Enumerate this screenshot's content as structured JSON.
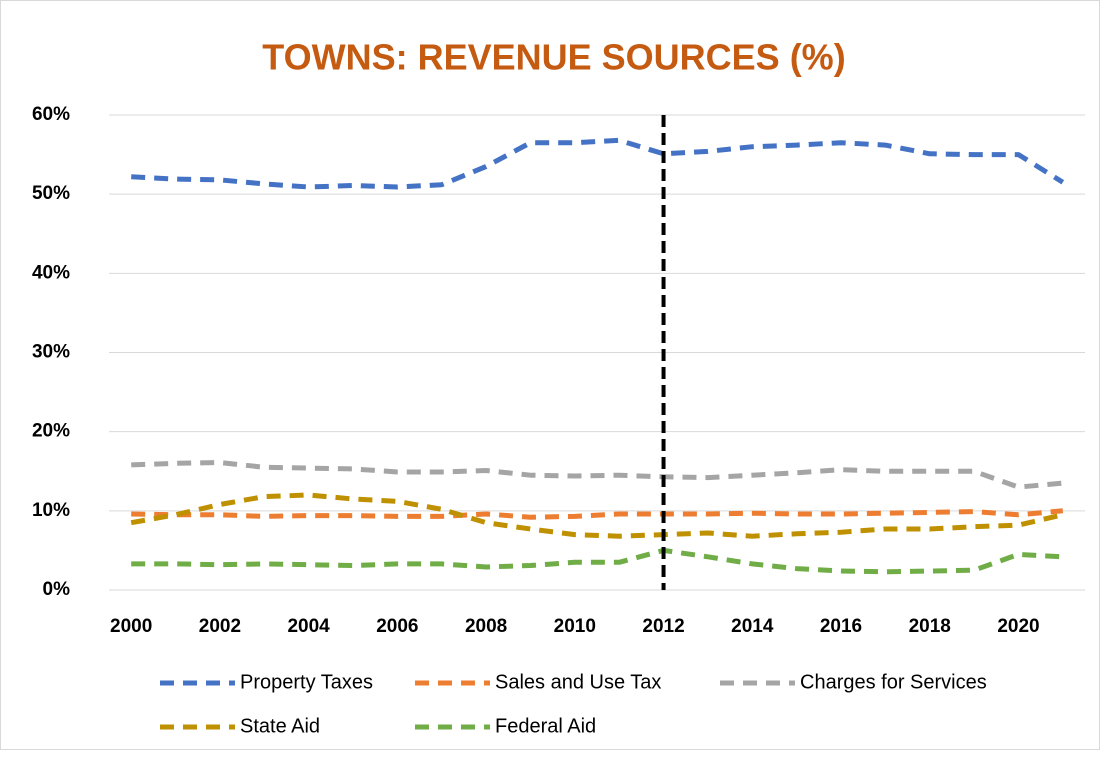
{
  "chart_data": {
    "type": "line",
    "title": "TOWNS: REVENUE SOURCES (%)",
    "x": [
      2000,
      2001,
      2002,
      2003,
      2004,
      2005,
      2006,
      2007,
      2008,
      2009,
      2010,
      2011,
      2012,
      2013,
      2014,
      2015,
      2016,
      2017,
      2018,
      2019,
      2020,
      2021
    ],
    "xlim": [
      1999.5,
      2021.5
    ],
    "xticks": [
      2000,
      2002,
      2004,
      2006,
      2008,
      2010,
      2012,
      2014,
      2016,
      2018,
      2020
    ],
    "ylim": [
      0,
      60
    ],
    "yticks": [
      {
        "value": 0,
        "label": "0%"
      },
      {
        "value": 10,
        "label": "10%"
      },
      {
        "value": 20,
        "label": "20%"
      },
      {
        "value": 30,
        "label": "30%"
      },
      {
        "value": 40,
        "label": "40%"
      },
      {
        "value": 50,
        "label": "50%"
      },
      {
        "value": 60,
        "label": "60%"
      }
    ],
    "grid": true,
    "vline": 2012,
    "legend": "bottom",
    "series": [
      {
        "name": "Property Taxes",
        "color": "#4472c4",
        "values": [
          52.2,
          51.9,
          51.8,
          51.3,
          50.9,
          51.1,
          50.9,
          51.2,
          53.5,
          56.5,
          56.5,
          56.8,
          55.1,
          55.4,
          56.0,
          56.2,
          56.5,
          56.2,
          55.1,
          55.0,
          55.0,
          51.5
        ]
      },
      {
        "name": "Sales and Use Tax",
        "color": "#ed7d31",
        "values": [
          9.6,
          9.5,
          9.5,
          9.3,
          9.4,
          9.4,
          9.3,
          9.3,
          9.6,
          9.2,
          9.3,
          9.6,
          9.6,
          9.6,
          9.7,
          9.6,
          9.6,
          9.7,
          9.8,
          9.9,
          9.5,
          10.0
        ]
      },
      {
        "name": "Charges for Services",
        "color": "#a5a5a5",
        "values": [
          15.8,
          16.0,
          16.1,
          15.5,
          15.4,
          15.3,
          14.9,
          14.9,
          15.1,
          14.5,
          14.4,
          14.5,
          14.3,
          14.2,
          14.5,
          14.8,
          15.2,
          15.0,
          15.0,
          15.0,
          13.0,
          13.5
        ]
      },
      {
        "name": "State Aid",
        "color": "#bf9000",
        "values": [
          8.5,
          9.5,
          10.8,
          11.8,
          12.0,
          11.5,
          11.2,
          10.2,
          8.5,
          7.7,
          7.0,
          6.8,
          7.0,
          7.2,
          6.8,
          7.1,
          7.3,
          7.7,
          7.7,
          8.0,
          8.2,
          9.5
        ]
      },
      {
        "name": "Federal Aid",
        "color": "#70ad47",
        "values": [
          3.3,
          3.3,
          3.2,
          3.3,
          3.2,
          3.1,
          3.3,
          3.3,
          2.9,
          3.1,
          3.5,
          3.5,
          5.0,
          4.2,
          3.3,
          2.7,
          2.4,
          2.3,
          2.4,
          2.5,
          4.5,
          4.2
        ]
      }
    ]
  }
}
